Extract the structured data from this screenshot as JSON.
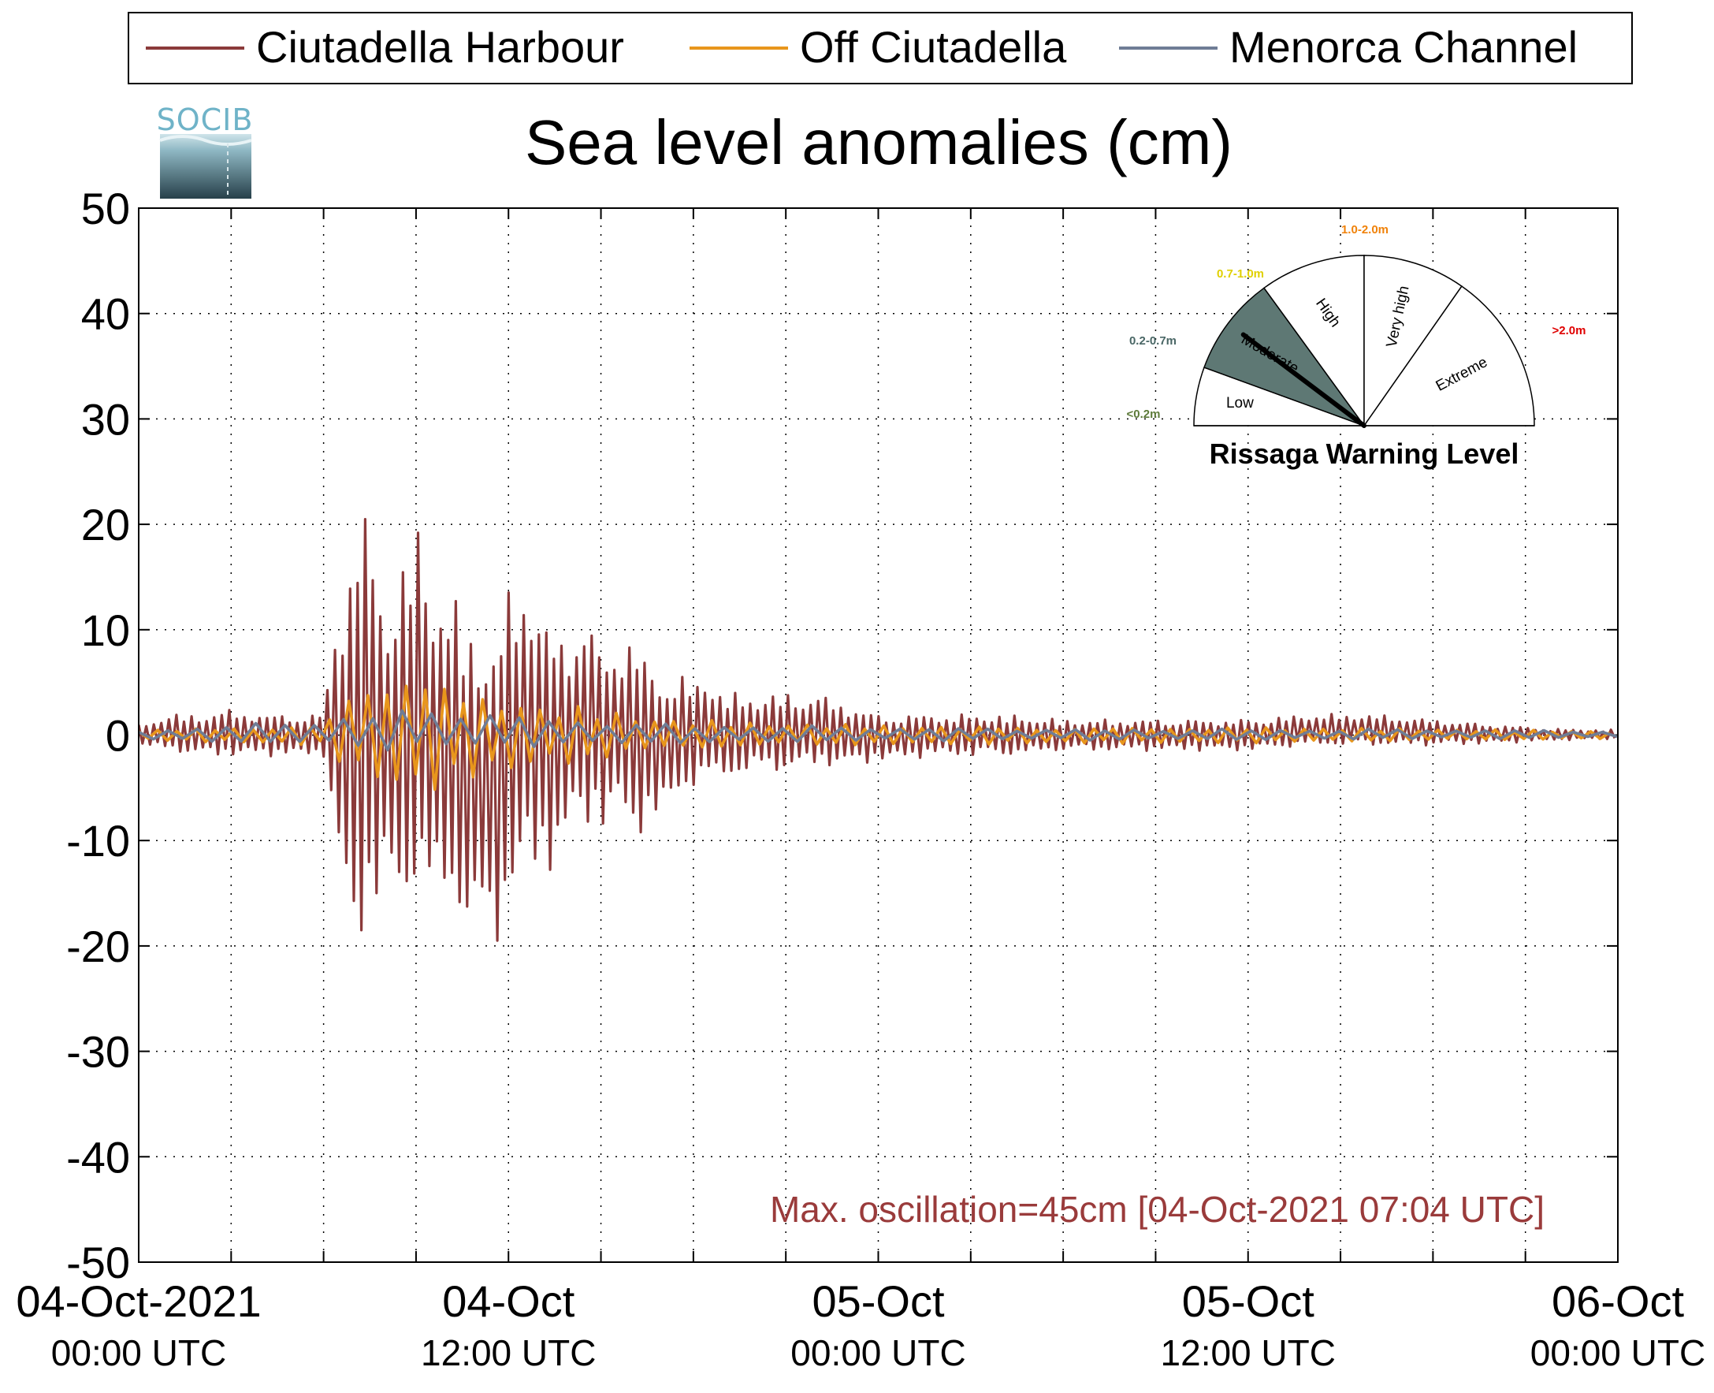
{
  "chart_data": {
    "type": "line",
    "title": "Sea level anomalies (cm)",
    "logo_text": "SOCIB",
    "xlabel": "",
    "ylabel": "",
    "ylim": [
      -50,
      50
    ],
    "yticks": [
      50,
      40,
      30,
      20,
      10,
      0,
      -10,
      -20,
      -30,
      -40,
      -50
    ],
    "xlim_hours": [
      0,
      48
    ],
    "x_tick_labels": [
      {
        "hours": 0,
        "line1": "04-Oct-2021",
        "line2": "00:00 UTC"
      },
      {
        "hours": 12,
        "line1": "04-Oct",
        "line2": "12:00 UTC"
      },
      {
        "hours": 24,
        "line1": "05-Oct",
        "line2": "00:00 UTC"
      },
      {
        "hours": 36,
        "line1": "05-Oct",
        "line2": "12:00 UTC"
      },
      {
        "hours": 48,
        "line1": "06-Oct",
        "line2": "00:00 UTC"
      }
    ],
    "grid": true,
    "legend_position": "top",
    "series": [
      {
        "name": "Ciutadella Harbour",
        "color": "#8b3a3a",
        "envelope": {
          "hours": [
            0,
            1,
            2,
            3,
            4,
            5,
            6,
            6.3,
            6.8,
            7.1,
            7.5,
            8,
            8.5,
            9,
            9.5,
            10,
            10.5,
            11,
            11.5,
            12,
            12.5,
            13,
            13.5,
            14,
            14.5,
            15,
            15.5,
            16,
            16.5,
            17,
            17.5,
            18,
            18.5,
            19,
            19.5,
            20,
            21,
            22,
            23,
            24,
            26,
            28,
            30,
            32,
            34,
            36,
            38,
            40,
            42,
            44,
            46,
            48
          ],
          "upper": [
            1,
            2,
            2,
            2.5,
            2,
            2,
            2,
            10,
            17,
            23,
            20,
            14,
            16,
            21,
            16,
            14,
            12,
            11,
            9,
            14,
            17,
            12,
            10,
            10,
            12,
            8,
            9,
            10,
            7,
            6,
            6,
            5,
            6,
            4,
            4,
            4,
            4,
            4,
            3,
            2,
            2,
            2,
            1.5,
            1.5,
            1.5,
            1.5,
            2,
            2,
            1.5,
            1,
            0.6,
            0.5
          ],
          "lower": [
            -1,
            -1.5,
            -2,
            -2,
            -2,
            -2,
            -2,
            -10,
            -20,
            -21,
            -18,
            -16,
            -18,
            -14,
            -18,
            -16,
            -18,
            -20,
            -22,
            -16,
            -14,
            -15,
            -12,
            -10,
            -9,
            -9,
            -8,
            -10,
            -9,
            -8,
            -6,
            -5,
            -5,
            -4,
            -4,
            -3.5,
            -3.5,
            -3,
            -3,
            -2.5,
            -2,
            -2,
            -1.5,
            -1.5,
            -1.5,
            -1.5,
            -1,
            -1,
            -1,
            -0.8,
            -0.5,
            -0.4
          ]
        }
      },
      {
        "name": "Off Ciutadella",
        "color": "#e8961c",
        "envelope": {
          "hours": [
            0,
            6,
            7,
            8,
            9,
            10,
            11,
            12,
            13,
            14,
            15,
            16,
            17,
            18,
            20,
            24,
            30,
            36,
            42,
            48
          ],
          "upper": [
            0.5,
            1,
            5,
            6,
            7,
            5,
            4,
            4,
            3,
            3,
            2.5,
            2,
            1.5,
            1.5,
            1.2,
            1,
            0.8,
            0.8,
            0.6,
            0.4
          ],
          "lower": [
            -0.5,
            -1,
            -4,
            -5,
            -6,
            -5,
            -4,
            -4,
            -3,
            -3,
            -2.5,
            -2,
            -1.5,
            -1.5,
            -1.2,
            -1,
            -0.8,
            -0.8,
            -0.6,
            -0.4
          ]
        }
      },
      {
        "name": "Menorca Channel",
        "color": "#6f7d96",
        "envelope": {
          "hours": [
            0,
            6,
            8,
            10,
            12,
            14,
            16,
            18,
            20,
            24,
            30,
            36,
            42,
            48
          ],
          "upper": [
            0.5,
            1.5,
            2.5,
            2.5,
            2,
            1.5,
            1.2,
            1,
            1,
            0.8,
            0.6,
            0.6,
            0.6,
            0.4
          ],
          "lower": [
            -0.5,
            -1,
            -1.5,
            -1.5,
            -1.2,
            -1,
            -1,
            -0.8,
            -0.8,
            -0.6,
            -0.5,
            -0.5,
            -0.4,
            -0.3
          ]
        }
      }
    ],
    "annotation": {
      "text": "Max. oscillation=45cm [04-Oct-2021 07:04 UTC]",
      "color": "#9a3b3b"
    },
    "gauge": {
      "title": "Rissaga Warning Level",
      "pointer_level": "Moderate",
      "sectors": [
        {
          "label": "Low",
          "range": "<0.2m",
          "range_color": "#5d7a3a",
          "fill": "#ffffff"
        },
        {
          "label": "Moderate",
          "range": "0.2-0.7m",
          "range_color": "#4a6766",
          "fill": "#5e7874"
        },
        {
          "label": "High",
          "range": "0.7-1.0m",
          "range_color": "#e0d000",
          "fill": "#ffffff"
        },
        {
          "label": "Very high",
          "range": "1.0-2.0m",
          "range_color": "#f0820a",
          "fill": "#ffffff"
        },
        {
          "label": "Extreme",
          "range": ">2.0m",
          "range_color": "#e00000",
          "fill": "#ffffff"
        }
      ]
    }
  }
}
